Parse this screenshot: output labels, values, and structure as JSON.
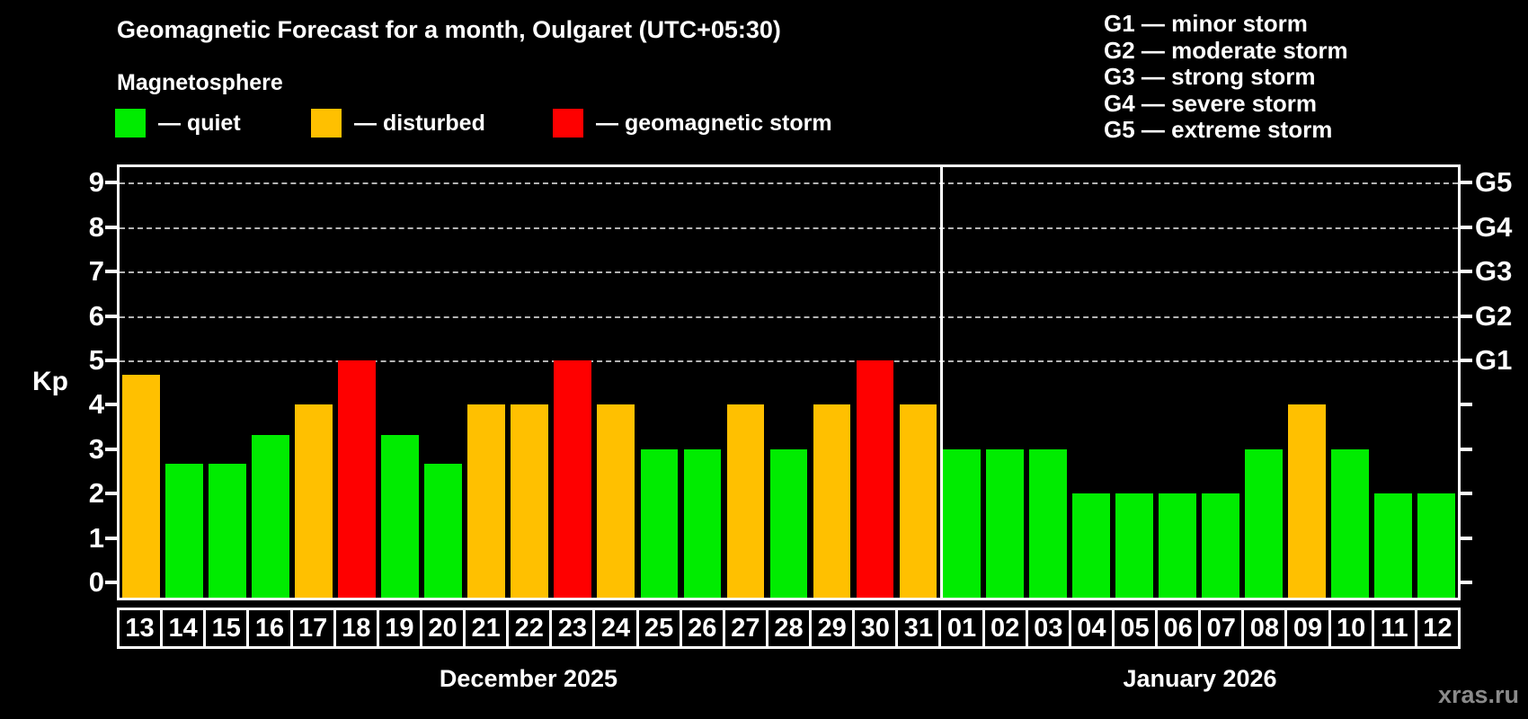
{
  "header": {
    "title": "Geomagnetic Forecast for a month, Oulgaret (UTC+05:30)",
    "subtitle": "Magnetosphere"
  },
  "legend": {
    "items": [
      {
        "name": "quiet",
        "label": "— quiet",
        "color": "#00ec00"
      },
      {
        "name": "disturbed",
        "label": "— disturbed",
        "color": "#ffc000"
      },
      {
        "name": "storm",
        "label": "— geomagnetic storm",
        "color": "#fe0000"
      }
    ]
  },
  "g_legend": [
    "G1 — minor storm",
    "G2 — moderate storm",
    "G3 — strong storm",
    "G4 — severe storm",
    "G5 — extreme storm"
  ],
  "watermark": "xras.ru",
  "chart_data": {
    "type": "bar",
    "title": "Geomagnetic Forecast for a month, Oulgaret (UTC+05:30)",
    "subtitle": "Magnetosphere",
    "ylabel": "Kp",
    "ylim": [
      0,
      9
    ],
    "axis": {
      "kp_top": 9.35,
      "kp_bottom": -0.34
    },
    "y_ticks": [
      0,
      1,
      2,
      3,
      4,
      5,
      6,
      7,
      8,
      9
    ],
    "gridlines_kp": [
      5,
      6,
      7,
      8,
      9
    ],
    "grid": "horizontal dashed at G-storm levels only",
    "legend_position": "top",
    "right_axis": [
      {
        "kp": 5,
        "label": "G1"
      },
      {
        "kp": 6,
        "label": "G2"
      },
      {
        "kp": 7,
        "label": "G3"
      },
      {
        "kp": 8,
        "label": "G4"
      },
      {
        "kp": 9,
        "label": "G5"
      }
    ],
    "status_colors": {
      "quiet": "#00ec00",
      "disturbed": "#ffc000",
      "storm": "#fe0000"
    },
    "groups": [
      {
        "label": "December 2025",
        "days": [
          "13",
          "14",
          "15",
          "16",
          "17",
          "18",
          "19",
          "20",
          "21",
          "22",
          "23",
          "24",
          "25",
          "26",
          "27",
          "28",
          "29",
          "30",
          "31"
        ],
        "values": [
          4.67,
          2.67,
          2.67,
          3.33,
          4,
          5,
          3.33,
          2.67,
          4,
          4,
          5,
          4,
          3,
          3,
          4,
          3,
          4,
          5,
          4
        ],
        "status": [
          "disturbed",
          "quiet",
          "quiet",
          "quiet",
          "disturbed",
          "storm",
          "quiet",
          "quiet",
          "disturbed",
          "disturbed",
          "storm",
          "disturbed",
          "quiet",
          "quiet",
          "disturbed",
          "quiet",
          "disturbed",
          "storm",
          "disturbed"
        ]
      },
      {
        "label": "January 2026",
        "days": [
          "01",
          "02",
          "03",
          "04",
          "05",
          "06",
          "07",
          "08",
          "09",
          "10",
          "11",
          "12"
        ],
        "values": [
          3,
          3,
          3,
          2,
          2,
          2,
          2,
          3,
          4,
          3,
          2,
          2
        ],
        "status": [
          "quiet",
          "quiet",
          "quiet",
          "quiet",
          "quiet",
          "quiet",
          "quiet",
          "quiet",
          "disturbed",
          "quiet",
          "quiet",
          "quiet"
        ]
      }
    ]
  }
}
